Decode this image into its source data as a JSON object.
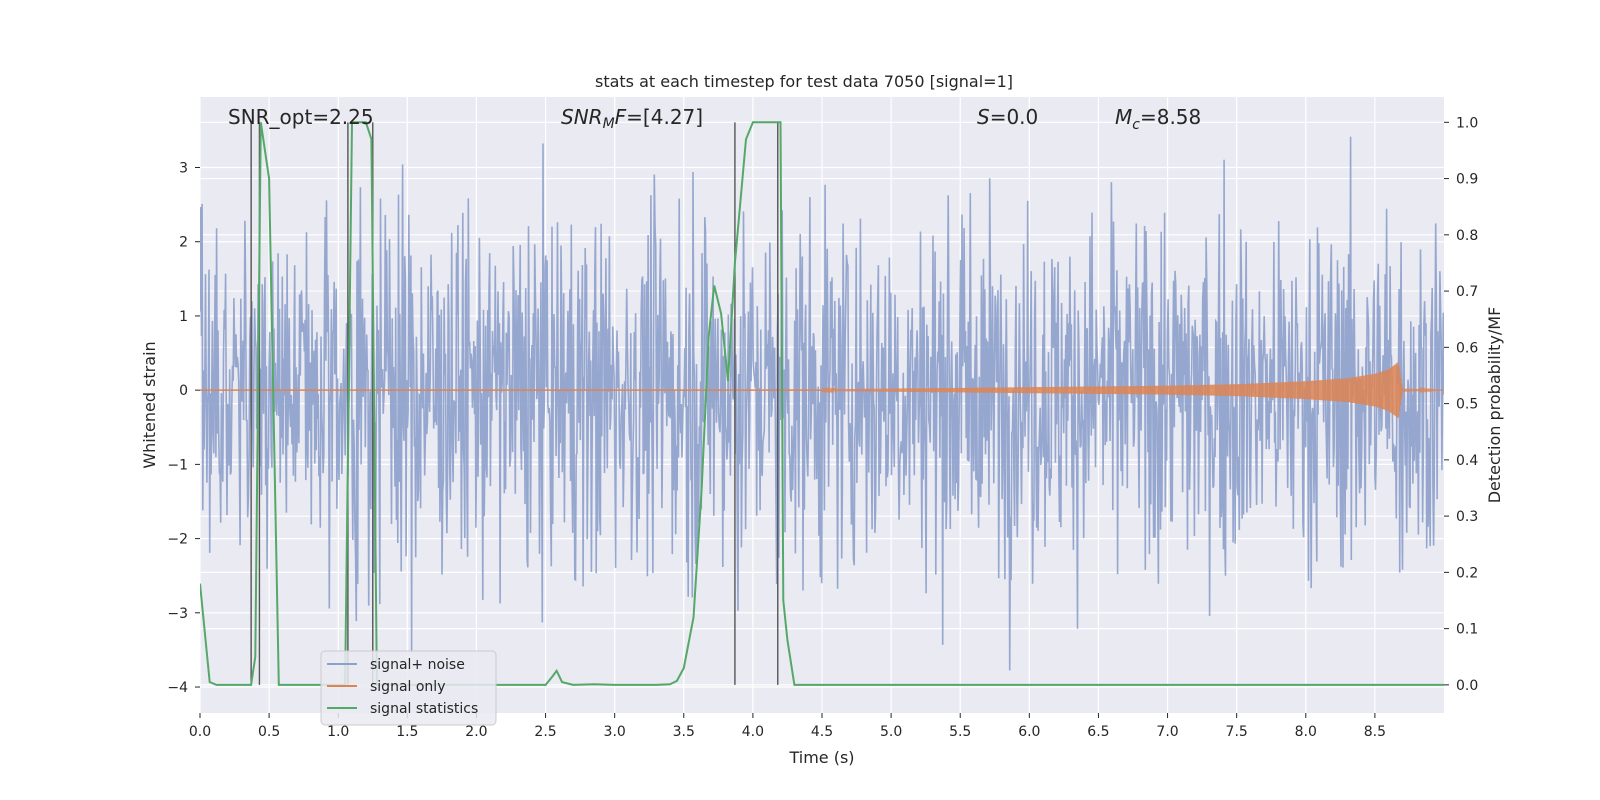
{
  "chart_data": {
    "type": "line",
    "title": "stats at each timestep for test data 7050 [signal=1]",
    "xlabel": "Time (s)",
    "ylabel": "Whitened strain",
    "y2label": "Detection probability/MF",
    "xlim": [
      0.0,
      9.0
    ],
    "ylim": [
      -4.35,
      3.95
    ],
    "y2lim": [
      -0.05,
      1.045
    ],
    "xticks": [
      "0.0",
      "0.5",
      "1.0",
      "1.5",
      "2.0",
      "2.5",
      "3.0",
      "3.5",
      "4.0",
      "4.5",
      "5.0",
      "5.5",
      "6.0",
      "6.5",
      "7.0",
      "7.5",
      "8.0",
      "8.5"
    ],
    "yticks": [
      "3",
      "2",
      "1",
      "0",
      "−1",
      "−2",
      "−3",
      "−4"
    ],
    "y2ticks": [
      "1.0",
      "0.9",
      "0.8",
      "0.7",
      "0.6",
      "0.5",
      "0.4",
      "0.3",
      "0.2",
      "0.1",
      "0.0"
    ],
    "grid": true,
    "legend_position": "lower-left",
    "annotations": {
      "snr_opt": "SNR_opt=2.25",
      "snr_mf": "=[4.27]",
      "s_val": "=0.0",
      "mc_val": "=8.58"
    },
    "series": [
      {
        "name": "signal+ noise",
        "color": "#8da0cb",
        "axis": "left",
        "kind": "noise",
        "envelope": {
          "upper_typical": 2.6,
          "upper_max": 3.5,
          "lower_typical": -2.6,
          "lower_min": -4.1
        }
      },
      {
        "name": "signal only",
        "color": "#dd8452",
        "axis": "left",
        "kind": "chirp",
        "x": [
          4.5,
          5.0,
          5.5,
          6.0,
          6.5,
          7.0,
          7.5,
          8.0,
          8.3,
          8.5,
          8.6,
          8.65,
          8.67,
          8.7,
          9.0
        ],
        "amplitude": [
          0.01,
          0.02,
          0.03,
          0.04,
          0.05,
          0.06,
          0.08,
          0.12,
          0.16,
          0.22,
          0.28,
          0.35,
          0.38,
          0.02,
          0.0
        ]
      },
      {
        "name": "signal statistics",
        "color": "#55a868",
        "axis": "right",
        "x": [
          0.0,
          0.07,
          0.12,
          0.2,
          0.3,
          0.37,
          0.4,
          0.44,
          0.5,
          0.57,
          0.6,
          1.0,
          1.05,
          1.1,
          1.15,
          1.2,
          1.24,
          1.28,
          1.3,
          1.4,
          2.0,
          2.5,
          2.55,
          2.58,
          2.62,
          2.7,
          2.85,
          3.0,
          3.3,
          3.4,
          3.45,
          3.5,
          3.57,
          3.63,
          3.68,
          3.72,
          3.77,
          3.82,
          3.87,
          3.95,
          4.0,
          4.1,
          4.2,
          4.22,
          4.25,
          4.3,
          4.5,
          5.0,
          6.0,
          7.0,
          8.0,
          9.0
        ],
        "y": [
          0.18,
          0.005,
          0.0,
          0.0,
          0.0,
          0.0,
          0.05,
          1.0,
          0.9,
          0.0,
          0.0,
          0.0,
          0.0,
          1.0,
          1.0,
          1.0,
          0.97,
          0.0,
          0.0,
          0.0,
          0.0,
          0.0,
          0.015,
          0.025,
          0.005,
          0.0,
          0.001,
          0.0,
          0.0,
          0.001,
          0.007,
          0.03,
          0.12,
          0.35,
          0.62,
          0.71,
          0.66,
          0.54,
          0.75,
          0.97,
          1.0,
          1.0,
          1.0,
          0.15,
          0.08,
          0.0,
          0.0,
          0.0,
          0.0,
          0.0,
          0.0,
          0.0
        ]
      }
    ],
    "vertical_lines": [
      0.37,
      0.43,
      1.07,
      1.25,
      3.87,
      4.18
    ]
  }
}
